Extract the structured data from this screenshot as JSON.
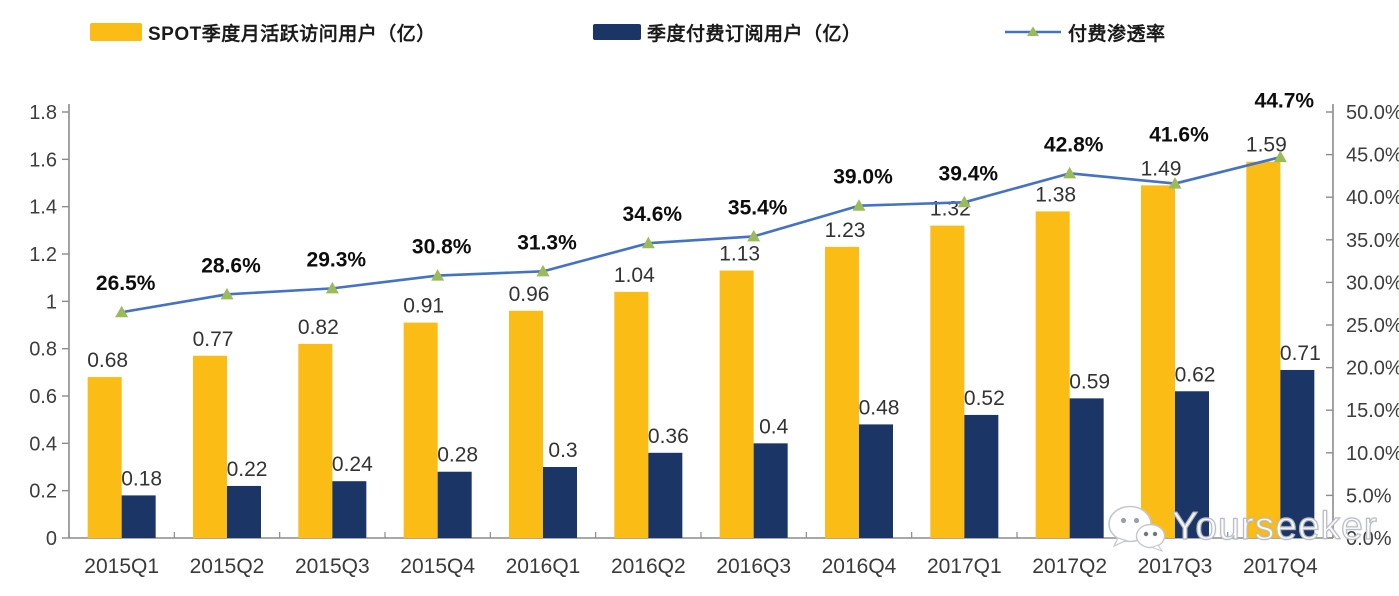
{
  "legend": [
    {
      "label": "SPOT季度月活跃访问用户（亿）",
      "type": "bar",
      "color": "#FBBC15"
    },
    {
      "label": "季度付费订阅用户（亿）",
      "type": "bar",
      "color": "#1B3566"
    },
    {
      "label": "付费渗透率",
      "type": "line",
      "color": "#4472C4",
      "marker_color": "#9BBB59"
    }
  ],
  "chart_data": {
    "type": "combo",
    "categories": [
      "2015Q1",
      "2015Q2",
      "2015Q3",
      "2015Q4",
      "2016Q1",
      "2016Q2",
      "2016Q3",
      "2016Q4",
      "2017Q1",
      "2017Q2",
      "2017Q3",
      "2017Q4"
    ],
    "series": [
      {
        "name": "SPOT季度月活跃访问用户（亿）",
        "type": "bar",
        "axis": "left",
        "color": "#FBBC15",
        "values": [
          0.68,
          0.77,
          0.82,
          0.91,
          0.96,
          1.04,
          1.13,
          1.23,
          1.32,
          1.38,
          1.49,
          1.59
        ],
        "labels": [
          "0.68",
          "0.77",
          "0.82",
          "0.91",
          "0.96",
          "1.04",
          "1.13",
          "1.23",
          "1.32",
          "1.38",
          "1.49",
          "1.59"
        ]
      },
      {
        "name": "季度付费订阅用户（亿）",
        "type": "bar",
        "axis": "left",
        "color": "#1B3566",
        "values": [
          0.18,
          0.22,
          0.24,
          0.28,
          0.3,
          0.36,
          0.4,
          0.48,
          0.52,
          0.59,
          0.62,
          0.71
        ],
        "labels": [
          "0.18",
          "0.22",
          "0.24",
          "0.28",
          "0.3",
          "0.36",
          "0.4",
          "0.48",
          "0.52",
          "0.59",
          "0.62",
          "0.71"
        ]
      },
      {
        "name": "付费渗透率",
        "type": "line",
        "axis": "right",
        "color": "#4472C4",
        "marker": "triangle",
        "marker_color": "#9BBB59",
        "values": [
          26.5,
          28.6,
          29.3,
          30.8,
          31.3,
          34.6,
          35.4,
          39.0,
          39.4,
          42.8,
          41.6,
          44.7
        ],
        "labels": [
          "26.5%",
          "28.6%",
          "29.3%",
          "30.8%",
          "31.3%",
          "34.6%",
          "35.4%",
          "39.0%",
          "39.4%",
          "42.8%",
          "41.6%",
          "44.7%"
        ],
        "label_offsets": [
          0,
          0,
          0,
          0,
          0,
          0,
          0,
          0,
          0,
          0,
          -10,
          -20
        ]
      }
    ],
    "left_axis": {
      "min": 0,
      "max": 1.8,
      "step": 0.2,
      "ticks": [
        "0",
        "0.2",
        "0.4",
        "0.6",
        "0.8",
        "1",
        "1.2",
        "1.4",
        "1.6",
        "1.8"
      ]
    },
    "right_axis": {
      "min": 0,
      "max": 50,
      "step": 5,
      "ticks": [
        "0.0%",
        "5.0%",
        "10.0%",
        "15.0%",
        "20.0%",
        "25.0%",
        "30.0%",
        "35.0%",
        "40.0%",
        "45.0%",
        "50.0%"
      ]
    },
    "grid": false,
    "legend_position": "top"
  },
  "watermark": {
    "text": "Yourseeker",
    "icon": "wechat-icon"
  }
}
